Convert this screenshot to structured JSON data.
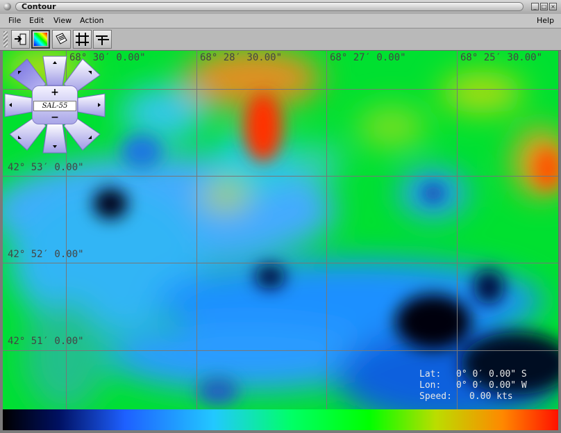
{
  "window": {
    "title": "Contour"
  },
  "menubar": {
    "file": "File",
    "edit": "Edit",
    "view": "View",
    "action": "Action",
    "help": "Help"
  },
  "toolbar": {
    "buttons": [
      "exit-icon",
      "colormap-icon",
      "pages-icon",
      "grid-icon",
      "route-icon"
    ]
  },
  "grid": {
    "lon_labels": [
      "68° 30′ 0.00\"",
      "68° 28′ 30.00\"",
      "68° 27′ 0.00\"",
      "68° 25′ 30.00\""
    ],
    "lat_labels": [
      "42° 53′ 0.00\"",
      "42° 52′ 0.00\"",
      "42° 51′ 0.00\""
    ]
  },
  "nav": {
    "vessel": "SAL-55",
    "zoom_in": "+",
    "zoom_out": "−"
  },
  "readout": {
    "lat_label": "Lat:",
    "lat_value": "0° 0′ 0.00\" S",
    "lon_label": "Lon:",
    "lon_value": "0° 0′ 0.00\" W",
    "speed_label": "Speed:",
    "speed_value": "0.00 kts"
  },
  "colors": {
    "low": "#000000",
    "mid": "#00ee00",
    "high": "#ff2200"
  }
}
